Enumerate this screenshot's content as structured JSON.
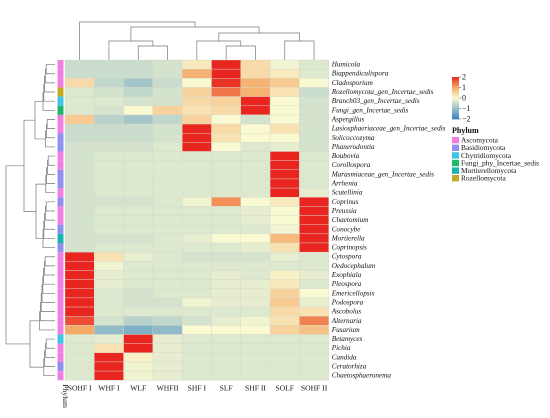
{
  "chart_data": {
    "type": "heatmap",
    "columns": [
      "SOHF I",
      "WHF I",
      "WLF",
      "WHFII",
      "SHF I",
      "SLF",
      "SHF II",
      "SOLF",
      "SOHF II"
    ],
    "rows": [
      {
        "name": "Humicola",
        "phylum": "Ascomycota",
        "values": [
          -0.5,
          -0.5,
          -0.5,
          -0.4,
          0.2,
          2.2,
          0.4,
          -0.1,
          -0.3
        ]
      },
      {
        "name": "Biappendiculispora",
        "phylum": "Ascomycota",
        "values": [
          -0.5,
          -0.5,
          -0.5,
          -0.4,
          0.9,
          2.1,
          0.4,
          0.2,
          -0.3
        ]
      },
      {
        "name": "Cladosporium",
        "phylum": "Ascomycota",
        "values": [
          0.4,
          -0.6,
          -0.9,
          -0.5,
          0.0,
          1.9,
          0.9,
          0.6,
          0.0
        ]
      },
      {
        "name": "Rozellomycota_gen_Incertae_sedis",
        "phylum": "Rozellomycota",
        "values": [
          -0.3,
          -0.4,
          -0.6,
          -0.4,
          0.5,
          1.4,
          0.9,
          0.3,
          -0.5
        ]
      },
      {
        "name": "Branch03_gen_Incertae_sedis",
        "phylum": "Chytridiomycota",
        "values": [
          -0.3,
          -0.3,
          -0.4,
          -0.4,
          0.4,
          0.5,
          2.2,
          0.0,
          -0.4
        ]
      },
      {
        "name": "Fungi_gen_Incertae_sedis",
        "phylum": "Fungi_phy_Incertae_sedis",
        "values": [
          -0.3,
          -0.4,
          0.0,
          0.5,
          0.3,
          0.4,
          2.0,
          0.0,
          -0.4
        ]
      },
      {
        "name": "Aspergillus",
        "phylum": "Ascomycota",
        "values": [
          0.6,
          -0.7,
          -0.9,
          -0.6,
          0.5,
          0.0,
          -0.4,
          0.0,
          -0.4
        ]
      },
      {
        "name": "Lasiosphaeriaceae_gen_Incertae_sedis",
        "phylum": "Ascomycota",
        "values": [
          -0.5,
          -0.5,
          -0.5,
          -0.4,
          2.2,
          0.4,
          0.0,
          0.3,
          -0.4
        ]
      },
      {
        "name": "Solicoccozyma",
        "phylum": "Basidiomycota",
        "values": [
          -0.5,
          -0.5,
          -0.5,
          -0.4,
          2.1,
          0.3,
          0.0,
          0.0,
          -0.4
        ]
      },
      {
        "name": "Phanerodontia",
        "phylum": "Basidiomycota",
        "values": [
          -0.4,
          -0.4,
          -0.4,
          -0.3,
          2.2,
          0.0,
          -0.3,
          -0.2,
          -0.4
        ]
      },
      {
        "name": "Boubovia",
        "phylum": "Ascomycota",
        "values": [
          -0.4,
          -0.3,
          -0.3,
          -0.3,
          -0.3,
          -0.3,
          -0.3,
          2.2,
          -0.3
        ]
      },
      {
        "name": "Corollospora",
        "phylum": "Ascomycota",
        "values": [
          -0.4,
          -0.3,
          -0.3,
          -0.3,
          -0.3,
          -0.3,
          -0.3,
          2.2,
          -0.3
        ]
      },
      {
        "name": "Marasmiaceae_gen_Incertae_sedis",
        "phylum": "Basidiomycota",
        "values": [
          -0.4,
          -0.3,
          -0.3,
          -0.3,
          -0.3,
          -0.3,
          -0.3,
          2.2,
          -0.3
        ]
      },
      {
        "name": "Arrhenia",
        "phylum": "Basidiomycota",
        "values": [
          -0.4,
          -0.3,
          -0.3,
          -0.3,
          -0.3,
          -0.3,
          -0.3,
          2.2,
          -0.3
        ]
      },
      {
        "name": "Scutellinia",
        "phylum": "Ascomycota",
        "values": [
          -0.4,
          -0.3,
          -0.3,
          -0.3,
          -0.3,
          -0.3,
          -0.3,
          2.2,
          -0.2
        ]
      },
      {
        "name": "Coprinus",
        "phylum": "Basidiomycota",
        "values": [
          -0.4,
          -0.4,
          -0.4,
          -0.3,
          -0.1,
          1.2,
          0.0,
          0.2,
          2.1
        ]
      },
      {
        "name": "Preussia",
        "phylum": "Ascomycota",
        "values": [
          -0.4,
          -0.3,
          -0.3,
          -0.3,
          -0.3,
          -0.3,
          -0.2,
          0.0,
          2.2
        ]
      },
      {
        "name": "Chaetomium",
        "phylum": "Ascomycota",
        "values": [
          -0.4,
          -0.3,
          -0.3,
          -0.3,
          -0.3,
          -0.3,
          -0.2,
          0.0,
          2.2
        ]
      },
      {
        "name": "Conocybe",
        "phylum": "Basidiomycota",
        "values": [
          -0.4,
          -0.3,
          -0.3,
          -0.3,
          -0.3,
          -0.3,
          -0.3,
          -0.1,
          2.2
        ]
      },
      {
        "name": "Mortierella",
        "phylum": "Mortierellomycota",
        "values": [
          -0.4,
          -0.4,
          -0.4,
          -0.3,
          -0.2,
          0.0,
          0.0,
          0.8,
          2.1
        ]
      },
      {
        "name": "Coprinopsis",
        "phylum": "Basidiomycota",
        "values": [
          -0.4,
          -0.3,
          -0.3,
          -0.3,
          -0.3,
          -0.3,
          -0.2,
          0.3,
          2.2
        ]
      },
      {
        "name": "Cytospora",
        "phylum": "Ascomycota",
        "values": [
          2.2,
          0.3,
          -0.2,
          -0.3,
          -0.4,
          -0.4,
          -0.4,
          -0.2,
          -0.3
        ]
      },
      {
        "name": "Oedocephalum",
        "phylum": "Ascomycota",
        "values": [
          2.2,
          -0.1,
          -0.3,
          -0.3,
          -0.3,
          -0.3,
          -0.3,
          -0.3,
          -0.3
        ]
      },
      {
        "name": "Exophiala",
        "phylum": "Ascomycota",
        "values": [
          2.1,
          -0.2,
          -0.3,
          -0.3,
          -0.3,
          -0.2,
          -0.3,
          0.1,
          -0.2
        ]
      },
      {
        "name": "Pleospora",
        "phylum": "Ascomycota",
        "values": [
          2.1,
          -0.2,
          -0.3,
          -0.3,
          -0.3,
          -0.2,
          -0.2,
          0.2,
          -0.3
        ]
      },
      {
        "name": "Emericellopsis",
        "phylum": "Ascomycota",
        "values": [
          2.0,
          -0.3,
          -0.4,
          -0.3,
          -0.3,
          -0.2,
          -0.2,
          0.5,
          0.0
        ]
      },
      {
        "name": "Podospora",
        "phylum": "Ascomycota",
        "values": [
          2.0,
          -0.3,
          -0.4,
          -0.4,
          -0.1,
          -0.2,
          -0.2,
          0.6,
          -0.2
        ]
      },
      {
        "name": "Ascobolus",
        "phylum": "Ascomycota",
        "values": [
          2.0,
          -0.3,
          -0.3,
          -0.3,
          -0.3,
          -0.3,
          -0.3,
          0.4,
          0.3
        ]
      },
      {
        "name": "Alternaria",
        "phylum": "Ascomycota",
        "values": [
          1.7,
          -0.4,
          -0.7,
          -0.6,
          -0.4,
          -0.2,
          -0.1,
          0.3,
          1.3
        ]
      },
      {
        "name": "Fusarium",
        "phylum": "Ascomycota",
        "values": [
          1.0,
          -1.1,
          -1.3,
          -1.1,
          0.0,
          0.0,
          0.0,
          0.5,
          0.7
        ]
      },
      {
        "name": "Betamyces",
        "phylum": "Chytridiomycota",
        "values": [
          -0.3,
          -0.2,
          2.2,
          -0.2,
          -0.3,
          -0.3,
          -0.3,
          -0.3,
          -0.3
        ]
      },
      {
        "name": "Pichia",
        "phylum": "Ascomycota",
        "values": [
          -0.3,
          0.3,
          2.1,
          -0.2,
          -0.3,
          -0.3,
          -0.3,
          -0.3,
          -0.3
        ]
      },
      {
        "name": "Candida",
        "phylum": "Ascomycota",
        "values": [
          -0.3,
          2.2,
          0.1,
          -0.2,
          -0.3,
          -0.3,
          -0.3,
          -0.3,
          -0.3
        ]
      },
      {
        "name": "Ceratorhiza",
        "phylum": "Basidiomycota",
        "values": [
          -0.3,
          2.2,
          -0.1,
          -0.2,
          -0.3,
          -0.3,
          -0.3,
          -0.3,
          -0.3
        ]
      },
      {
        "name": "Chaetosphaeronema",
        "phylum": "Ascomycota",
        "values": [
          -0.3,
          2.2,
          -0.1,
          -0.2,
          -0.3,
          -0.3,
          -0.3,
          -0.3,
          -0.3
        ]
      }
    ],
    "color_scale": {
      "ticks": [
        2,
        1,
        0,
        -1,
        -2
      ],
      "tick_labels": [
        "2",
        "1",
        "0",
        "−1",
        "−2"
      ],
      "high_color": "#e8261f",
      "mid_color": "#fafad2",
      "low_color": "#3a86be"
    },
    "annotation_label": "Phylum",
    "legend": {
      "title": "Phylum",
      "entries": [
        {
          "label": "Ascomycota",
          "color": "#f07fe0"
        },
        {
          "label": "Basidiomycota",
          "color": "#8f90f0"
        },
        {
          "label": "Chytridiomycota",
          "color": "#3fc3e9"
        },
        {
          "label": "Fungi_phy_Incertae_sedis",
          "color": "#1fb86a"
        },
        {
          "label": "Mortierellomycota",
          "color": "#19b3ae"
        },
        {
          "label": "Rozellomycota",
          "color": "#c4a923"
        }
      ]
    },
    "dendrograms": {
      "row": true,
      "column": true
    }
  }
}
